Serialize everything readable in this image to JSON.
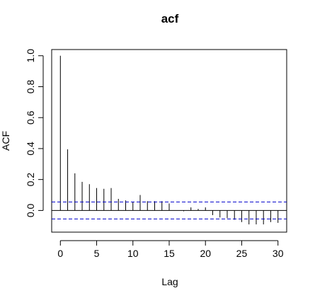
{
  "chart_data": {
    "type": "bar",
    "title": "acf",
    "xlabel": "Lag",
    "ylabel": "ACF",
    "xlim": [
      -1.2,
      31.2
    ],
    "ylim": [
      -0.14,
      1.04
    ],
    "x_ticks": [
      0,
      5,
      10,
      15,
      20,
      25,
      30
    ],
    "x_tick_labels": [
      "0",
      "5",
      "10",
      "15",
      "20",
      "25",
      "30"
    ],
    "y_ticks": [
      0.0,
      0.2,
      0.4,
      0.6,
      0.8,
      1.0
    ],
    "y_tick_labels": [
      "0.0",
      "0.2",
      "0.4",
      "0.6",
      "0.8",
      "1.0"
    ],
    "lags": [
      0,
      1,
      2,
      3,
      4,
      5,
      6,
      7,
      8,
      9,
      10,
      11,
      12,
      13,
      14,
      15,
      16,
      17,
      18,
      19,
      20,
      21,
      22,
      23,
      24,
      25,
      26,
      27,
      28,
      29,
      30
    ],
    "values": [
      1.0,
      0.395,
      0.24,
      0.185,
      0.17,
      0.145,
      0.14,
      0.145,
      0.075,
      0.065,
      0.055,
      0.1,
      0.06,
      0.06,
      0.06,
      0.045,
      0.0,
      -0.005,
      0.02,
      0.01,
      0.02,
      -0.03,
      -0.045,
      -0.05,
      -0.06,
      -0.075,
      -0.09,
      -0.09,
      -0.09,
      -0.075,
      -0.08
    ],
    "confidence_bound": 0.055,
    "colors": {
      "bars": "#000000",
      "confidence": "#0000cc",
      "zero_line": "#000000"
    },
    "grid": false
  }
}
